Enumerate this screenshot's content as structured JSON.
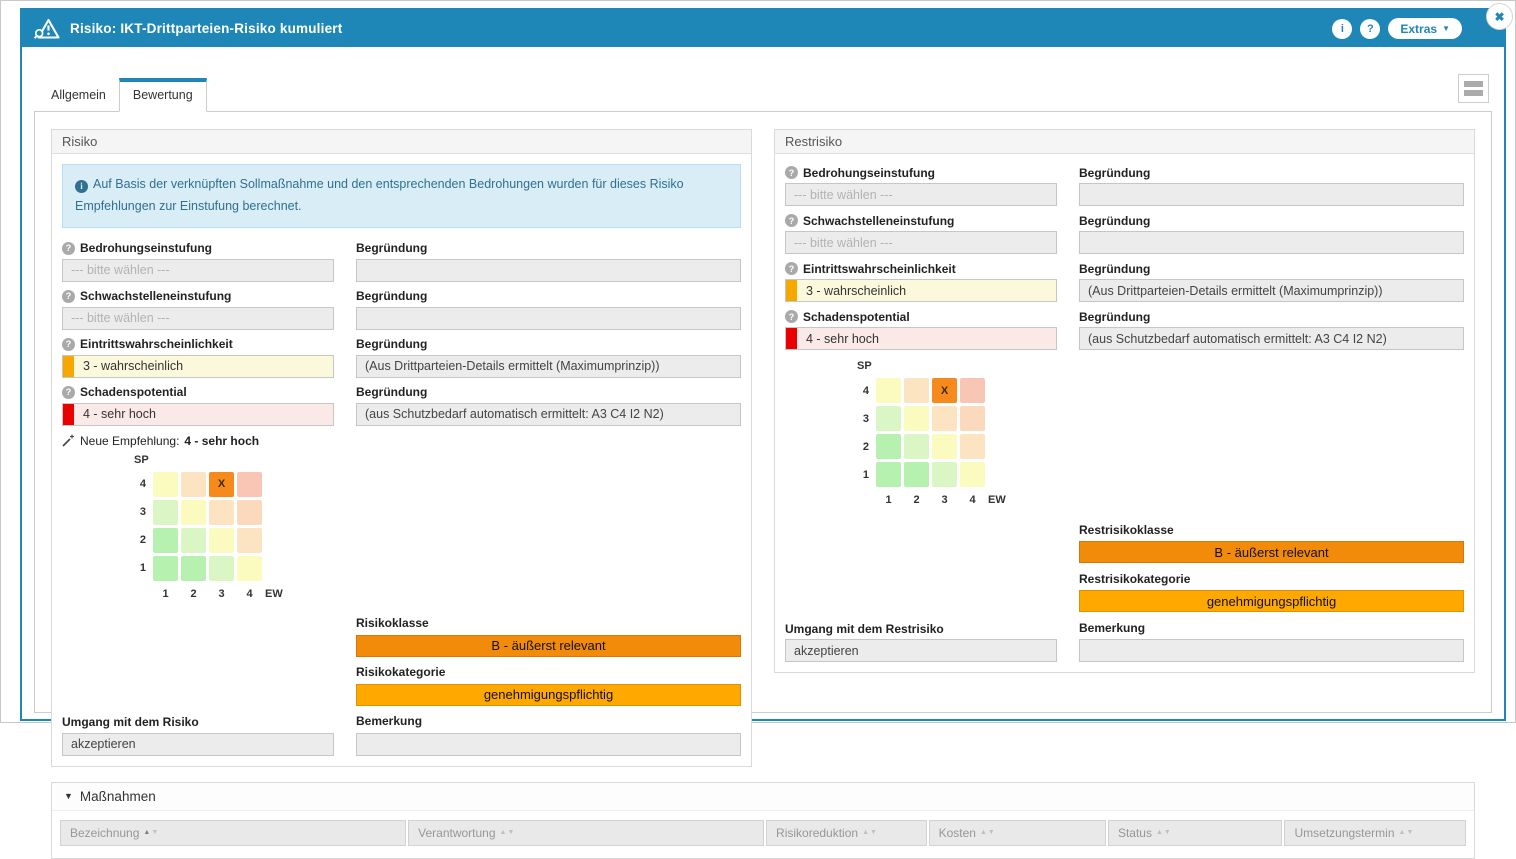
{
  "colors": {
    "accent_blue": "#1E87B8",
    "class_orange": "#F28A0A",
    "category_amber": "#FFA800",
    "severity_orange_stripe": "#F7A800",
    "severity_orange_bg": "#FCF8DC",
    "severity_red_stripe": "#EB0000",
    "severity_red_bg": "#FBE9E7"
  },
  "icons": {
    "info_glyph": "i",
    "help_glyph": "?",
    "close_glyph": "✖",
    "extras_caret": "▼",
    "collapse_caret": "▼",
    "sort_up": "▲",
    "sort_down": "▼"
  },
  "titlebar": {
    "title": "Risiko: IKT-Drittparteien-Risiko kumuliert",
    "extras_label": "Extras"
  },
  "tabs": {
    "allgemein": "Allgemein",
    "bewertung": "Bewertung",
    "active_tab": "Bewertung"
  },
  "risiko": {
    "title": "Risiko",
    "info_message": "Auf Basis der verknüpften Sollmaßnahme und den entsprechenden Bedrohungen wurden für dieses Risiko Empfehlungen zur Einstufung berechnet.",
    "begruendung_label": "Begründung",
    "bedrohung_label": "Bedrohungseinstufung",
    "bedrohung_placeholder": "--- bitte wählen ---",
    "bedrohung_begruendung": "",
    "schwachstellen_label": "Schwachstelleneinstufung",
    "schwachstellen_placeholder": "--- bitte wählen ---",
    "schwachstellen_begruendung": "",
    "eintritt_label": "Eintrittswahrscheinlichkeit",
    "eintritt_value": "3 - wahrscheinlich",
    "eintritt_begruendung": "(Aus Drittparteien-Details ermittelt (Maximumprinzip))",
    "schaden_label": "Schadenspotential",
    "schaden_value": "4 - sehr hoch",
    "schaden_begruendung": "(aus Schutzbedarf automatisch ermittelt: A3 C4 I2 N2)",
    "empfehlung_label": "Neue Empfehlung:",
    "empfehlung_value": "4 - sehr hoch",
    "matrix": {
      "y_axis": "SP",
      "x_axis": "EW",
      "rows": [
        "4",
        "3",
        "2",
        "1"
      ],
      "cols": [
        "1",
        "2",
        "3",
        "4"
      ],
      "marker": "X",
      "marker_row_index": 0,
      "marker_col_index": 2,
      "cells": [
        [
          "#FBFABF",
          "#FCE4C2",
          "#F68A1D",
          "#F9C6B6"
        ],
        [
          "#D9F6C4",
          "#FBFABF",
          "#FCE4C2",
          "#FBD9BD"
        ],
        [
          "#B6F1AF",
          "#D9F6C4",
          "#FBFABF",
          "#FCE4C2"
        ],
        [
          "#B6F1AF",
          "#B6F1AF",
          "#D9F6C4",
          "#FBFABF"
        ]
      ]
    },
    "umgang_label": "Umgang mit dem Risiko",
    "umgang_value": "akzeptieren",
    "klasse_label": "Risikoklasse",
    "klasse_value": "B - äußerst relevant",
    "kategorie_label": "Risikokategorie",
    "kategorie_value": "genehmigungspflichtig",
    "bemerkung_label": "Bemerkung",
    "bemerkung_value": ""
  },
  "restrisiko": {
    "title": "Restrisiko",
    "begruendung_label": "Begründung",
    "bedrohung_label": "Bedrohungseinstufung",
    "bedrohung_placeholder": "--- bitte wählen ---",
    "bedrohung_begruendung": "",
    "schwachstellen_label": "Schwachstelleneinstufung",
    "schwachstellen_placeholder": "--- bitte wählen ---",
    "schwachstellen_begruendung": "",
    "eintritt_label": "Eintrittswahrscheinlichkeit",
    "eintritt_value": "3 - wahrscheinlich",
    "eintritt_begruendung": "(Aus Drittparteien-Details ermittelt (Maximumprinzip))",
    "schaden_label": "Schadenspotential",
    "schaden_value": "4 - sehr hoch",
    "schaden_begruendung": "(aus Schutzbedarf automatisch ermittelt: A3 C4 I2 N2)",
    "matrix": {
      "y_axis": "SP",
      "x_axis": "EW",
      "rows": [
        "4",
        "3",
        "2",
        "1"
      ],
      "cols": [
        "1",
        "2",
        "3",
        "4"
      ],
      "marker": "X",
      "marker_row_index": 0,
      "marker_col_index": 2,
      "cells": [
        [
          "#FBFABF",
          "#FCE4C2",
          "#F68A1D",
          "#F9C6B6"
        ],
        [
          "#D9F6C4",
          "#FBFABF",
          "#FCE4C2",
          "#FBD9BD"
        ],
        [
          "#B6F1AF",
          "#D9F6C4",
          "#FBFABF",
          "#FCE4C2"
        ],
        [
          "#B6F1AF",
          "#B6F1AF",
          "#D9F6C4",
          "#FBFABF"
        ]
      ]
    },
    "umgang_label": "Umgang mit dem Restrisiko",
    "umgang_value": "akzeptieren",
    "klasse_label": "Restrisikoklasse",
    "klasse_value": "B - äußerst relevant",
    "kategorie_label": "Restrisikokategorie",
    "kategorie_value": "genehmigungspflichtig",
    "bemerkung_label": "Bemerkung",
    "bemerkung_value": ""
  },
  "massnahmen": {
    "title": "Maßnahmen",
    "sorted_column": "Bezeichnung",
    "columns": [
      {
        "label": "Bezeichnung"
      },
      {
        "label": "Verantwortung"
      },
      {
        "label": "Risikoreduktion"
      },
      {
        "label": "Kosten"
      },
      {
        "label": "Status"
      },
      {
        "label": "Umsetzungstermin"
      }
    ],
    "rows": []
  }
}
